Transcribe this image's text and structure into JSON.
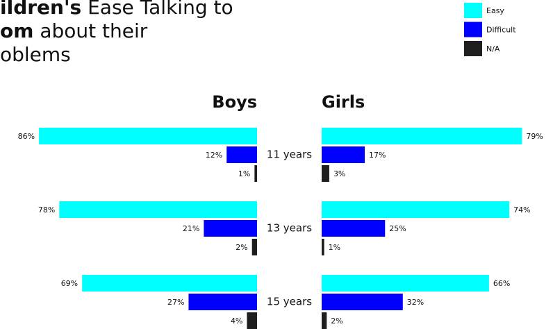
{
  "chart_data": {
    "type": "butterfly",
    "title_lines": [
      {
        "bold": "ildren's",
        "rest": " Ease Talking to"
      },
      {
        "bold": "om",
        "rest": " about their"
      },
      {
        "bold": "",
        "rest": "oblems"
      }
    ],
    "categories": [
      "11 years",
      "13 years",
      "15 years"
    ],
    "series": [
      {
        "name": "Easy",
        "color": "#00ffff"
      },
      {
        "name": "Difficult",
        "color": "#0000ff"
      },
      {
        "name": "N/A",
        "color": "#1e1e1e"
      }
    ],
    "panels": [
      {
        "name": "Boys",
        "values": [
          [
            86,
            78,
            69
          ],
          [
            12,
            21,
            27
          ],
          [
            1,
            2,
            4
          ]
        ],
        "value_labels": [
          [
            "86%",
            "78%",
            "69%"
          ],
          [
            "12%",
            "21%",
            "27%"
          ],
          [
            "1%",
            "2%",
            "4%"
          ]
        ]
      },
      {
        "name": "Girls",
        "values": [
          [
            79,
            74,
            66
          ],
          [
            17,
            25,
            32
          ],
          [
            3,
            1,
            2
          ]
        ],
        "value_labels": [
          [
            "79%",
            "74%",
            "66%"
          ],
          [
            "17%",
            "25%",
            "32%"
          ],
          [
            "3%",
            "1%",
            "2%"
          ]
        ]
      }
    ]
  }
}
